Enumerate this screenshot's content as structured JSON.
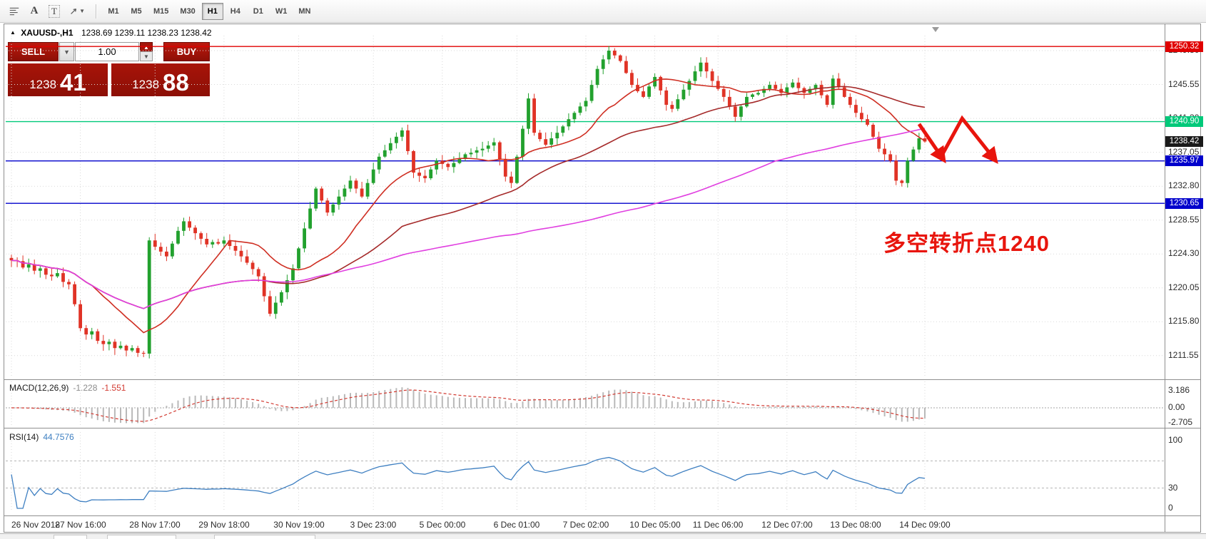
{
  "toolbar": {
    "text_tool_glyph": "A",
    "label_tool_glyph": "T",
    "timeframes": [
      "M1",
      "M5",
      "M15",
      "M30",
      "H1",
      "H4",
      "D1",
      "W1",
      "MN"
    ],
    "active_timeframe": "H1"
  },
  "chart": {
    "symbol": "XAUUSD-,H1",
    "quote_line": "1238.69 1239.11 1238.23 1238.42"
  },
  "trade_panel": {
    "sell_label": "SELL",
    "buy_label": "BUY",
    "volume": "1.00",
    "sell_price_main": "1238",
    "sell_price_pips": "41",
    "buy_price_main": "1238",
    "buy_price_pips": "88"
  },
  "annotation": {
    "text": "多空转折点1240",
    "color": "#e8150d"
  },
  "macd": {
    "name": "MACD(12,26,9)",
    "value1": "-1.228",
    "value2": "-1.551",
    "scale": [
      {
        "label": "3.186",
        "value": 3.186
      },
      {
        "label": "0.00",
        "value": 0
      },
      {
        "label": "-2.705",
        "value": -2.705
      }
    ]
  },
  "rsi": {
    "name": "RSI(14)",
    "value": "44.7576",
    "scale": [
      {
        "label": "100",
        "value": 100
      },
      {
        "label": "30",
        "value": 30
      },
      {
        "label": "0",
        "value": 0
      }
    ],
    "levels": [
      70,
      30
    ]
  },
  "levels": [
    {
      "value": 1250.32,
      "label": "1250.32",
      "color": "#e00000",
      "badge_bg": "#e00000",
      "badge_fg": "#ffffff",
      "line": true
    },
    {
      "value": 1240.9,
      "label": "1240.90",
      "color": "#00c97a",
      "badge_bg": "#00c97a",
      "badge_fg": "#ffffff",
      "line": true
    },
    {
      "value": 1238.42,
      "label": "1238.42",
      "color": "#1a1a1a",
      "badge_bg": "#1a1a1a",
      "badge_fg": "#ffffff",
      "line": false
    },
    {
      "value": 1235.97,
      "label": "1235.97",
      "color": "#0000cc",
      "badge_bg": "#0000cc",
      "badge_fg": "#ffffff",
      "line": true
    },
    {
      "value": 1230.65,
      "label": "1230.65",
      "color": "#0000cc",
      "badge_bg": "#0000cc",
      "badge_fg": "#ffffff",
      "line": true
    }
  ],
  "chart_data": {
    "type": "candlestick",
    "symbol": "XAUUSD",
    "timeframe": "H1",
    "y_range": [
      1209.3,
      1251.5
    ],
    "price_ticks": [
      1249.8,
      1245.55,
      1241.3,
      1237.05,
      1232.8,
      1228.55,
      1224.3,
      1220.05,
      1215.8,
      1211.55
    ],
    "time_ticks": [
      {
        "i": 0,
        "label": "26 Nov 2018"
      },
      {
        "i": 12,
        "label": "27 Nov 16:00"
      },
      {
        "i": 25,
        "label": "28 Nov 17:00"
      },
      {
        "i": 37,
        "label": "29 Nov 18:00"
      },
      {
        "i": 50,
        "label": "30 Nov 19:00"
      },
      {
        "i": 63,
        "label": "3 Dec 23:00"
      },
      {
        "i": 75,
        "label": "5 Dec 00:00"
      },
      {
        "i": 88,
        "label": "6 Dec 01:00"
      },
      {
        "i": 100,
        "label": "7 Dec 02:00"
      },
      {
        "i": 112,
        "label": "10 Dec 05:00"
      },
      {
        "i": 123,
        "label": "11 Dec 06:00"
      },
      {
        "i": 135,
        "label": "12 Dec 07:00"
      },
      {
        "i": 147,
        "label": "13 Dec 08:00"
      },
      {
        "i": 159,
        "label": "14 Dec 09:00"
      }
    ],
    "colors": {
      "up": "#22a12e",
      "down": "#e03326",
      "grid": "#d9d9d9",
      "macd_hist": "#b9b9b9",
      "macd_signal": "#d23b32",
      "rsi_line": "#3e7fc1"
    },
    "open_first": 1223.8,
    "closes": [
      1223.5,
      1223.4,
      1222.6,
      1223.0,
      1222.2,
      1222.5,
      1221.7,
      1221.5,
      1221.9,
      1220.8,
      1220.5,
      1218.0,
      1215.0,
      1214.2,
      1214.6,
      1213.4,
      1213.0,
      1213.3,
      1212.5,
      1212.8,
      1212.2,
      1212.5,
      1211.9,
      1211.8,
      1226.0,
      1225.2,
      1224.6,
      1224.0,
      1225.6,
      1227.2,
      1228.4,
      1227.6,
      1226.9,
      1226.2,
      1225.5,
      1225.8,
      1225.6,
      1226.0,
      1225.3,
      1224.7,
      1224.0,
      1223.2,
      1222.4,
      1221.5,
      1219.0,
      1216.8,
      1218.2,
      1219.5,
      1221.0,
      1222.5,
      1225.0,
      1227.5,
      1230.0,
      1232.5,
      1231.0,
      1229.5,
      1230.5,
      1231.5,
      1232.5,
      1233.5,
      1232.5,
      1231.5,
      1233.2,
      1234.9,
      1236.5,
      1237.3,
      1238.2,
      1239.0,
      1239.8,
      1237.2,
      1234.5,
      1234.1,
      1233.8,
      1234.9,
      1236.0,
      1235.6,
      1235.2,
      1235.7,
      1236.3,
      1236.8,
      1237.0,
      1237.3,
      1237.5,
      1237.9,
      1238.3,
      1236.2,
      1234.0,
      1233.2,
      1236.5,
      1240.0,
      1243.8,
      1239.5,
      1238.7,
      1238.0,
      1238.8,
      1239.5,
      1240.3,
      1241.2,
      1242.0,
      1242.8,
      1243.5,
      1245.5,
      1247.5,
      1248.7,
      1249.8,
      1249.2,
      1248.5,
      1247.0,
      1245.5,
      1244.7,
      1244.0,
      1245.3,
      1246.5,
      1244.8,
      1243.0,
      1242.5,
      1243.7,
      1244.9,
      1246.0,
      1247.2,
      1248.3,
      1247.2,
      1246.0,
      1245.0,
      1244.0,
      1242.8,
      1241.5,
      1242.8,
      1244.0,
      1244.3,
      1244.5,
      1245.0,
      1245.5,
      1245.0,
      1244.5,
      1245.2,
      1245.8,
      1245.1,
      1244.5,
      1245.0,
      1245.5,
      1244.2,
      1243.0,
      1246.3,
      1245.2,
      1244.0,
      1243.0,
      1242.0,
      1241.2,
      1240.5,
      1239.0,
      1237.5,
      1236.8,
      1236.0,
      1233.5,
      1233.2,
      1236.0,
      1237.4,
      1238.8,
      1238.4
    ],
    "overlays": [
      {
        "type": "sma",
        "period": 15,
        "color": "#cf2f23"
      },
      {
        "type": "sma",
        "period": 45,
        "color": "#a52a2a"
      },
      {
        "type": "sma",
        "period": 110,
        "color": "#e03fe0"
      }
    ],
    "arrows": [
      {
        "points": [
          [
            158,
            1240.6
          ],
          [
            162,
            1236.4
          ]
        ]
      },
      {
        "points": [
          [
            162,
            1236.7
          ],
          [
            165.5,
            1241.3
          ],
          [
            171,
            1236.3
          ]
        ]
      }
    ]
  }
}
